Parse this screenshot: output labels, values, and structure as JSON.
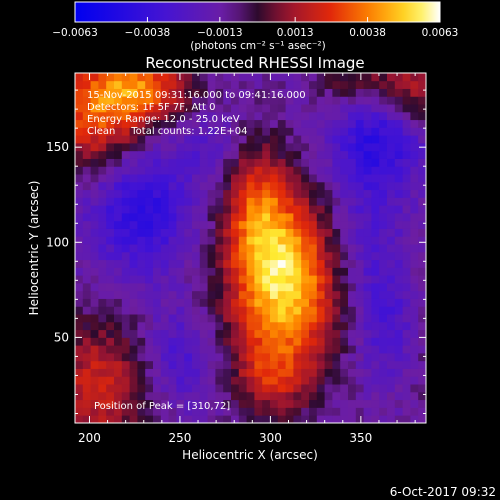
{
  "chart_data": {
    "type": "heatmap",
    "title": "Reconstructed RHESSI Image",
    "xlabel": "Heliocentric X (arcsec)",
    "ylabel": "Heliocentric Y (arcsec)",
    "xlim": [
      192,
      386
    ],
    "ylim": [
      5,
      189
    ],
    "xticks": [
      200,
      250,
      300,
      350
    ],
    "yticks": [
      50,
      100,
      150
    ],
    "colorbar": {
      "min": -0.0063,
      "max": 0.0063,
      "ticks": [
        "-0.0063",
        "-0.0038",
        "-0.0013",
        "0.0013",
        "0.0038",
        "0.0063"
      ],
      "unit_label": "(photons cm⁻² s⁻¹ asec⁻²)"
    },
    "annotations": [
      "15-Nov-2015 09:31:16.000 to 09:41:16.000",
      "Detectors: 1F 5F 7F, Att 0",
      "Energy Range: 12.0 - 25.0 keV",
      "Clean     Total counts: 1.22E+04"
    ],
    "peak_label": "Position of Peak = [310,72]",
    "peak": [
      310,
      72
    ],
    "sources": [
      {
        "x": 308,
        "y": 80,
        "sigx": 22,
        "sigy": 32,
        "amp": 0.0068
      },
      {
        "x": 292,
        "y": 120,
        "sigx": 12,
        "sigy": 22,
        "amp": 0.0028
      },
      {
        "x": 300,
        "y": 28,
        "sigx": 14,
        "sigy": 14,
        "amp": 0.0022
      },
      {
        "x": 205,
        "y": 168,
        "sigx": 22,
        "sigy": 22,
        "amp": 0.0045
      },
      {
        "x": 232,
        "y": 182,
        "sigx": 18,
        "sigy": 12,
        "amp": 0.0035
      },
      {
        "x": 205,
        "y": 25,
        "sigx": 20,
        "sigy": 25,
        "amp": 0.0032
      },
      {
        "x": 382,
        "y": 182,
        "sigx": 18,
        "sigy": 16,
        "amp": 0.003
      },
      {
        "x": 382,
        "y": 55,
        "sigx": 12,
        "sigy": 25,
        "amp": 0.002
      },
      {
        "x": 345,
        "y": 185,
        "sigx": 14,
        "sigy": 10,
        "amp": 0.0018
      },
      {
        "x": 228,
        "y": 120,
        "sigx": 20,
        "sigy": 25,
        "amp": -0.0032
      },
      {
        "x": 360,
        "y": 155,
        "sigx": 18,
        "sigy": 18,
        "amp": -0.003
      },
      {
        "x": 372,
        "y": 55,
        "sigx": 14,
        "sigy": 22,
        "amp": -0.0025
      },
      {
        "x": 350,
        "y": 100,
        "sigx": 18,
        "sigy": 30,
        "amp": -0.0018
      },
      {
        "x": 250,
        "y": 40,
        "sigx": 14,
        "sigy": 18,
        "amp": -0.0018
      },
      {
        "x": 265,
        "y": 150,
        "sigx": 12,
        "sigy": 12,
        "amp": -0.0012
      }
    ]
  },
  "timestamp": "6-Oct-2017 09:32"
}
